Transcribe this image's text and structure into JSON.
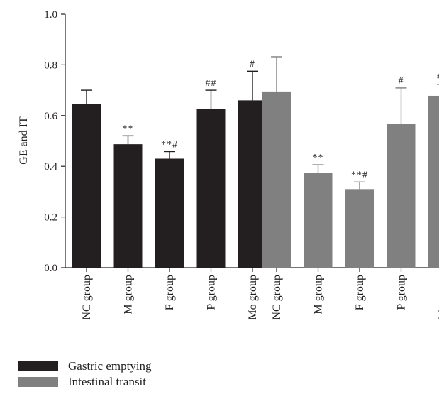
{
  "chart_data": {
    "type": "bar",
    "ylabel": "GE and IT",
    "ylim": [
      0,
      1.0
    ],
    "yticks": [
      "0.0",
      "0.2",
      "0.4",
      "0.6",
      "0.8",
      "1.0"
    ],
    "categories": [
      "NC group",
      "M group",
      "F group",
      "P group",
      "Mo group"
    ],
    "series": [
      {
        "name": "Gastric emptying",
        "color": "#231f20",
        "values": [
          0.645,
          0.487,
          0.43,
          0.625,
          0.66
        ],
        "errors": [
          0.055,
          0.033,
          0.028,
          0.075,
          0.115
        ],
        "annotations": [
          "",
          "**",
          "**#",
          "##",
          "#"
        ]
      },
      {
        "name": "Intestinal transit",
        "color": "#808080",
        "values": [
          0.695,
          0.373,
          0.31,
          0.567,
          0.678
        ],
        "errors": [
          0.137,
          0.033,
          0.028,
          0.142,
          0.045
        ],
        "annotations": [
          "",
          "**",
          "**#",
          "#",
          "##"
        ]
      }
    ],
    "legend": "bottom-left"
  }
}
